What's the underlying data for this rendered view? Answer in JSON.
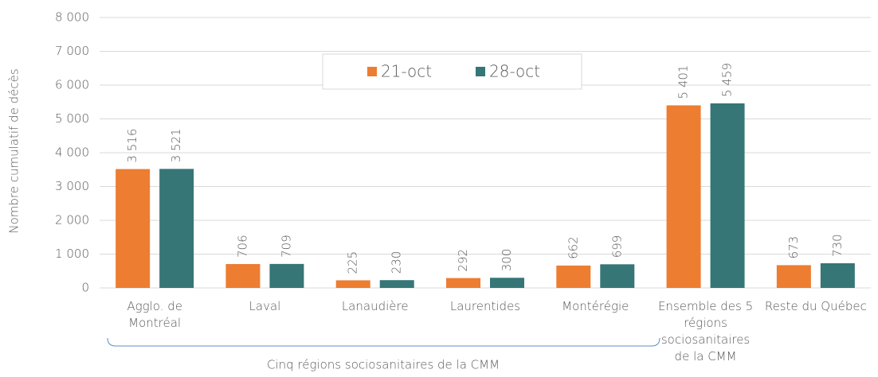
{
  "chart_data": {
    "type": "bar",
    "y_label": "Nombre cumulatif de décès",
    "categories": [
      "Agglo. de Montréal",
      "Laval",
      "Lanaudière",
      "Laurentides",
      "Montérégie",
      "Ensemble des 5 régions sociosanitaires de la CMM",
      "Reste du Québec"
    ],
    "series": [
      {
        "name": "21-oct",
        "color": "#ed7d31",
        "values": [
          3516,
          706,
          225,
          292,
          662,
          5401,
          673
        ],
        "value_labels": [
          "3 516",
          "706",
          "225",
          "292",
          "662",
          "5 401",
          "673"
        ]
      },
      {
        "name": "28-oct",
        "color": "#367677",
        "values": [
          3521,
          709,
          230,
          300,
          699,
          5459,
          730
        ],
        "value_labels": [
          "3 521",
          "709",
          "230",
          "300",
          "699",
          "5 459",
          "730"
        ]
      }
    ],
    "annotation": "Cinq régions sociosanitaires de la CMM",
    "ylim": [
      0,
      8000
    ],
    "yticks": [
      0,
      {
        "value": 1000,
        "label": "1 000"
      },
      {
        "value": 2000,
        "label": "2 000"
      },
      {
        "value": 3000,
        "label": "3 000"
      },
      {
        "value": 4000,
        "label": "4 000"
      },
      {
        "value": 5000,
        "label": "5 000"
      },
      {
        "value": 6000,
        "label": "6 000"
      },
      {
        "value": 7000,
        "label": "7 000"
      },
      {
        "value": 8000,
        "label": "8 000"
      }
    ],
    "grid": true,
    "legend": "top"
  }
}
